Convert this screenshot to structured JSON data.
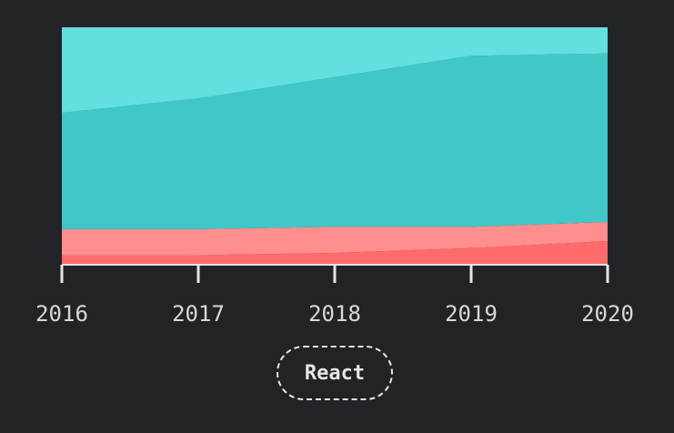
{
  "chart_data": {
    "type": "area",
    "stacked": true,
    "normalized": true,
    "x": [
      "2016",
      "2017",
      "2018",
      "2019",
      "2020"
    ],
    "ylim": [
      0,
      1
    ],
    "series": [
      {
        "values": [
          0.04,
          0.04,
          0.05,
          0.07,
          0.1
        ],
        "color": "#ff6b6b"
      },
      {
        "values": [
          0.11,
          0.11,
          0.11,
          0.09,
          0.08
        ],
        "color": "#ff8e8e"
      },
      {
        "values": [
          0.49,
          0.55,
          0.63,
          0.72,
          0.71
        ],
        "color": "#40c8c8"
      },
      {
        "values": [
          0.36,
          0.3,
          0.21,
          0.12,
          0.11
        ],
        "color": "#62e0e0"
      }
    ],
    "grid": false
  },
  "legend": {
    "button_label": "React"
  }
}
